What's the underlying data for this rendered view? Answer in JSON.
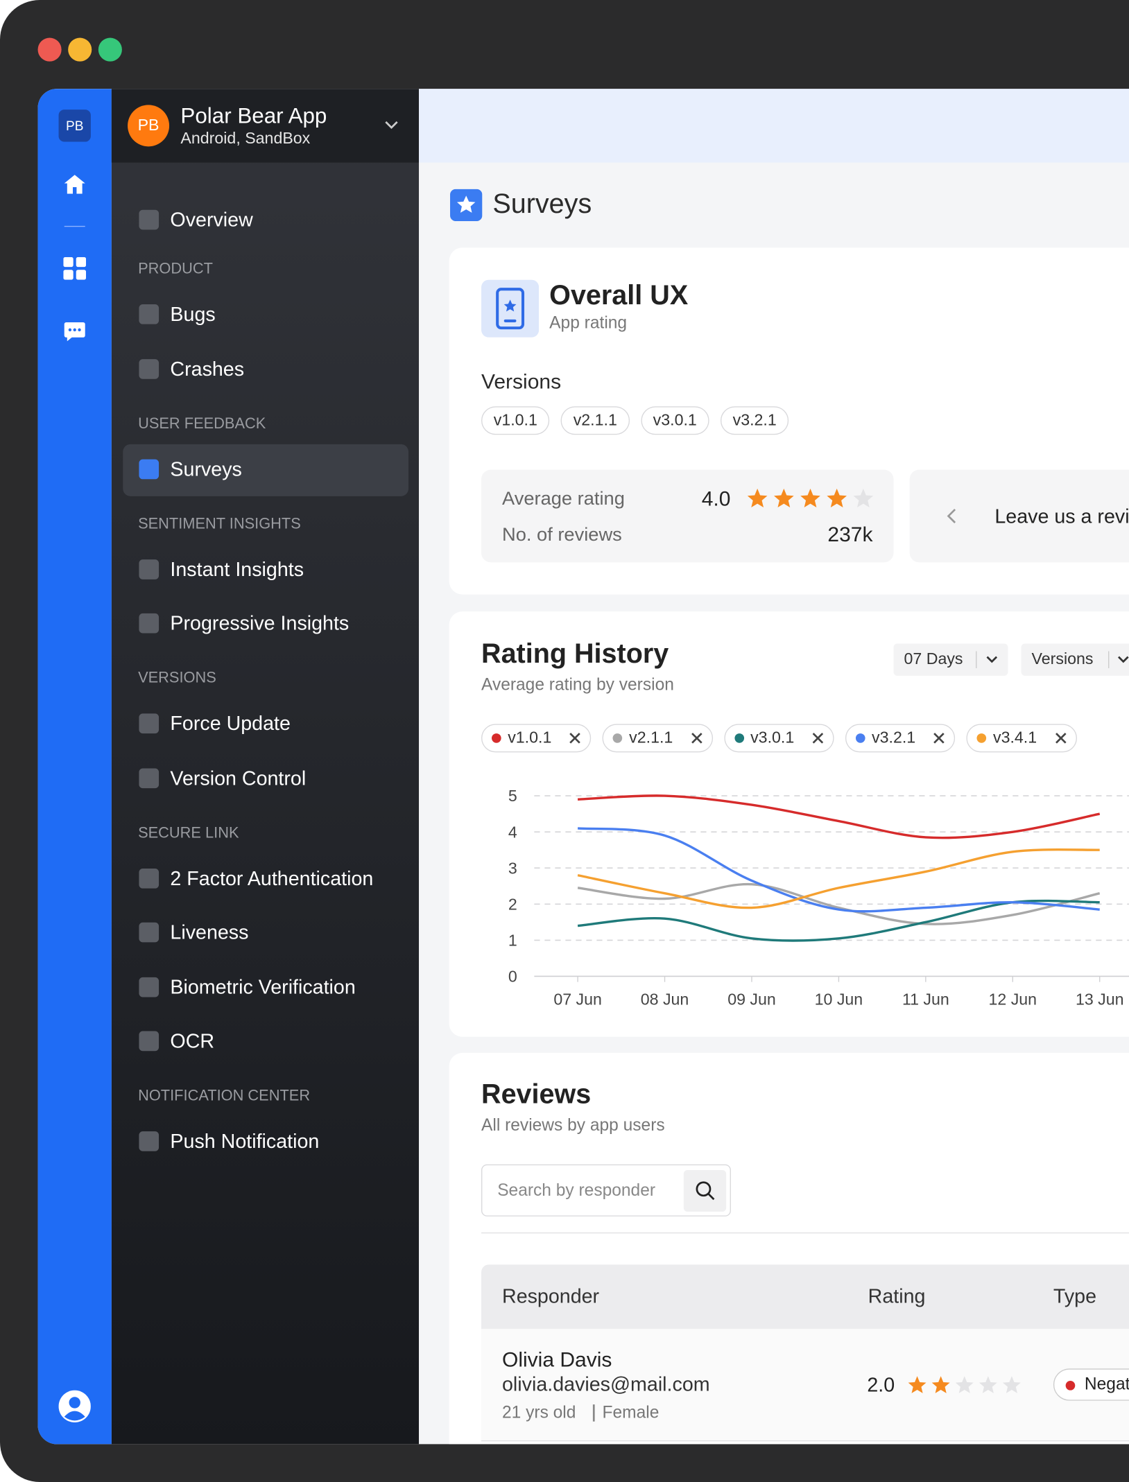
{
  "app": {
    "badge": "PB",
    "name": "Polar Bear App",
    "platform": "Android, SandBox"
  },
  "nav": {
    "overview": "Overview",
    "sections": [
      {
        "title": "PRODUCT",
        "items": [
          "Bugs",
          "Crashes"
        ]
      },
      {
        "title": "USER FEEDBACK",
        "items": [
          "Surveys"
        ]
      },
      {
        "title": "SENTIMENT INSIGHTS",
        "items": [
          "Instant Insights",
          "Progressive Insights"
        ]
      },
      {
        "title": "VERSIONS",
        "items": [
          "Force Update",
          "Version Control"
        ]
      },
      {
        "title": "SECURE LINK",
        "items": [
          "2 Factor Authentication",
          "Liveness",
          "Biometric Verification",
          "OCR"
        ]
      },
      {
        "title": "NOTIFICATION CENTER",
        "items": [
          "Push Notification"
        ]
      }
    ]
  },
  "page_title": "Surveys",
  "survey": {
    "title": "Overall UX",
    "subtitle": "App rating",
    "versions_label": "Versions",
    "versions": [
      "v1.0.1",
      "v2.1.1",
      "v3.0.1",
      "v3.2.1"
    ],
    "avg_label": "Average rating",
    "avg_value": "4.0",
    "reviews_label": "No. of reviews",
    "reviews_value": "237k",
    "carousel_text": "Leave us a review"
  },
  "filters": [
    "07 Days",
    "Versions"
  ],
  "chart_data": {
    "type": "line",
    "title": "Rating History",
    "subtitle": "Average rating by version",
    "categories": [
      "07 Jun",
      "08 Jun",
      "09 Jun",
      "10 Jun",
      "11 Jun",
      "12 Jun",
      "13 Jun"
    ],
    "series": [
      {
        "name": "v1.0.1",
        "color": "#d62b2b",
        "values": [
          4.9,
          5.0,
          4.75,
          4.3,
          3.85,
          4.0,
          4.5
        ]
      },
      {
        "name": "v2.1.1",
        "color": "#a8a8a8",
        "values": [
          2.45,
          2.15,
          2.55,
          1.9,
          1.45,
          1.7,
          2.3
        ]
      },
      {
        "name": "v3.0.1",
        "color": "#1f7a7a",
        "values": [
          1.4,
          1.6,
          1.05,
          1.05,
          1.5,
          2.05,
          2.05
        ]
      },
      {
        "name": "v3.2.1",
        "color": "#4a7ff0",
        "values": [
          4.1,
          3.9,
          2.65,
          1.85,
          1.9,
          2.05,
          1.85
        ]
      },
      {
        "name": "v3.4.1",
        "color": "#f5a030",
        "values": [
          2.8,
          2.3,
          1.9,
          2.45,
          2.9,
          3.45,
          3.5
        ]
      }
    ],
    "ylim": [
      0,
      5
    ],
    "yticks": [
      0,
      1,
      2,
      3,
      4,
      5
    ],
    "grid": true
  },
  "reviews": {
    "title": "Reviews",
    "subtitle": "All reviews by app users",
    "search_placeholder": "Search by responder",
    "columns": [
      "Responder",
      "Rating",
      "Type"
    ],
    "rows": [
      {
        "name": "Olivia Davis",
        "email": "olivia.davies@mail.com",
        "age": "21 yrs old",
        "gender": "Female",
        "rating": "2.0",
        "type": "Negative"
      }
    ]
  }
}
